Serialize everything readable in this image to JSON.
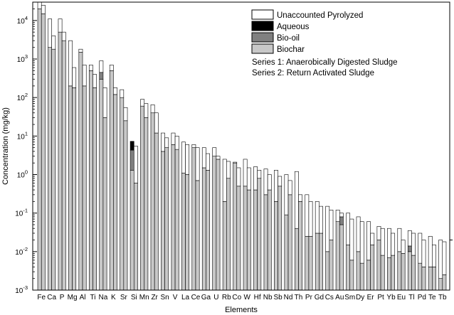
{
  "chart_data": {
    "type": "bar",
    "stacked": true,
    "grouped": true,
    "y_scale": "log",
    "ylim": [
      0.001,
      30000
    ],
    "xlabel": "Elements",
    "ylabel": "Concentration (mg/kg)",
    "legend_position": "top-right",
    "y_ticks": [
      {
        "value": 0.001,
        "base": "10",
        "exp": "-3"
      },
      {
        "value": 0.01,
        "base": "10",
        "exp": "-2"
      },
      {
        "value": 0.1,
        "base": "10",
        "exp": "-1"
      },
      {
        "value": 1,
        "base": "10",
        "exp": "0"
      },
      {
        "value": 10,
        "base": "10",
        "exp": "1"
      },
      {
        "value": 100,
        "base": "10",
        "exp": "2"
      },
      {
        "value": 1000,
        "base": "10",
        "exp": "3"
      },
      {
        "value": 10000,
        "base": "10",
        "exp": "4"
      }
    ],
    "categories": [
      "Fe",
      "Ca",
      "P",
      "Mg",
      "Al",
      "Ti",
      "Na",
      "K",
      "Sr",
      "Si",
      "Mn",
      "Zr",
      "Sn",
      "V",
      "La",
      "Ce",
      "Ga",
      "U",
      "Rb",
      "Co",
      "W",
      "Hf",
      "Nb",
      "Sb",
      "Nd",
      "Th",
      "Pr",
      "Gd",
      "Cs",
      "Au",
      "Sm",
      "Dy",
      "Er",
      "Pt",
      "Yb",
      "Eu",
      "Tl",
      "Pd",
      "Te",
      "Tb"
    ],
    "stack_components": [
      {
        "name": "Unaccounted Pyrolyzed",
        "color": "#ffffff"
      },
      {
        "name": "Aqueous",
        "color": "#000000"
      },
      {
        "name": "Bio-oil",
        "color": "#808080"
      },
      {
        "name": "Biochar",
        "color": "#c8c8c8"
      }
    ],
    "legend_notes": [
      "Series 1: Anaerobically Digested Sludge",
      "Series 2: Return Activated Sludge"
    ],
    "series": [
      {
        "name": "Series 1: Anaerobically Digested Sludge",
        "totals": [
          30000,
          11000,
          11000,
          3000,
          1800,
          700,
          900,
          700,
          160,
          7,
          90,
          65,
          12,
          12,
          7,
          6,
          5,
          5,
          2.5,
          2.1,
          2.5,
          1.6,
          1.4,
          1.3,
          1.0,
          1.2,
          0.3,
          0.2,
          0.15,
          0.12,
          0.1,
          0.08,
          0.06,
          0.045,
          0.04,
          0.04,
          0.035,
          0.03,
          0.025,
          0.02
        ],
        "biochar": [
          20000,
          2000,
          5000,
          200,
          1500,
          500,
          300,
          500,
          100,
          1.3,
          60,
          40,
          4,
          6,
          1.1,
          5,
          1.5,
          3,
          0.2,
          2,
          0.5,
          0.4,
          0.3,
          0.2,
          0.09,
          0.04,
          0.025,
          0.03,
          0.01,
          0.06,
          0.015,
          0.01,
          0.006,
          0.02,
          0.007,
          0.01,
          0.01,
          0.005,
          0.004,
          0.002
        ],
        "bio_oil": [
          0,
          0,
          0,
          0,
          0,
          0,
          150,
          0,
          0,
          3,
          0,
          0,
          0,
          0,
          0,
          0,
          0,
          0,
          0,
          0,
          0,
          0,
          0,
          0,
          0,
          0,
          0,
          0,
          0,
          0,
          0,
          0,
          0,
          0,
          0,
          0,
          0.004,
          0,
          0,
          0
        ],
        "aqueous": [
          0,
          0,
          0,
          0,
          0,
          0,
          0,
          0,
          0,
          3,
          0,
          0,
          0,
          0,
          0,
          0,
          0,
          0,
          0,
          0,
          0,
          0,
          0,
          0,
          0,
          0,
          0,
          0,
          0,
          0,
          0,
          0,
          0,
          0,
          0,
          0,
          0,
          0,
          0,
          0
        ]
      },
      {
        "name": "Series 2: Return Activated Sludge",
        "totals": [
          25000,
          4000,
          5000,
          600,
          700,
          400,
          180,
          180,
          55,
          5.5,
          70,
          40,
          9,
          10,
          6,
          5,
          3.5,
          3,
          2.2,
          1.5,
          1.5,
          1.3,
          1.0,
          0.9,
          0.7,
          0.3,
          0.2,
          0.15,
          0.12,
          0.1,
          0.07,
          0.06,
          0.03,
          0.04,
          0.03,
          0.02,
          0.03,
          0.02,
          0.015,
          0.018
        ],
        "biochar": [
          15000,
          1800,
          3000,
          180,
          200,
          180,
          30,
          120,
          25,
          0.6,
          30,
          12,
          5,
          4.5,
          1.0,
          0.7,
          1.3,
          2.5,
          0.8,
          0.5,
          0.4,
          0.8,
          0.4,
          0.5,
          0.3,
          0.2,
          0.025,
          0.03,
          0.02,
          0.05,
          0.006,
          0.005,
          0.015,
          0.008,
          0.008,
          0.009,
          0.008,
          0.004,
          0.004,
          0.0025
        ],
        "bio_oil": [
          0,
          0,
          0,
          0,
          0,
          0,
          0,
          0,
          0,
          0,
          0,
          0,
          0,
          0,
          0,
          0,
          0,
          0,
          0,
          0,
          0,
          0,
          0,
          0,
          0,
          0,
          0,
          0,
          0,
          0.03,
          0,
          0,
          0,
          0,
          0,
          0,
          0,
          0,
          0,
          0
        ],
        "aqueous": [
          0,
          0,
          0,
          0,
          0,
          0,
          0,
          0,
          0,
          0,
          0,
          0,
          0,
          0,
          0,
          0,
          0,
          0,
          0,
          0,
          0,
          0,
          0,
          0,
          0,
          0,
          0,
          0,
          0,
          0,
          0,
          0,
          0,
          0,
          0,
          0,
          0,
          0,
          0,
          0
        ]
      }
    ]
  }
}
